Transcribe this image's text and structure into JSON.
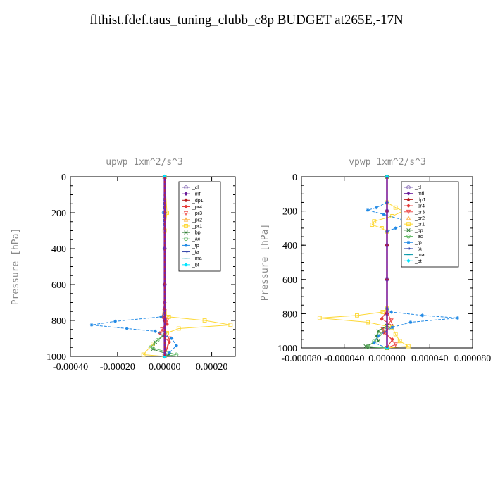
{
  "title": "flthist.fdef.taus_tuning_clubb_c8p  BUDGET at265E,-17N",
  "chart_data": [
    {
      "type": "line",
      "title": "upwp   1xm^2/s^3",
      "ylabel": "Pressure [hPa]",
      "xlim": [
        -0.0004,
        0.0003
      ],
      "ylim": [
        1000,
        0
      ],
      "x_ticks": [
        -0.0004,
        -0.0002,
        0.0,
        0.0002
      ],
      "x_tick_labels": [
        "-0.00040",
        "-0.00020",
        "0.00000",
        "0.00020"
      ],
      "y_ticks": [
        0,
        200,
        400,
        600,
        800,
        1000
      ],
      "y_tick_labels": [
        "0",
        "200",
        "400",
        "600",
        "800",
        "1000"
      ],
      "legend_position": "top-right",
      "series": [
        {
          "name": "_cl",
          "color": "#8a6fb8",
          "marker": "circle",
          "points": [
            [
              0,
              0
            ],
            [
              0,
              200
            ],
            [
              0,
              400
            ],
            [
              0,
              600
            ],
            [
              0,
              800
            ],
            [
              0,
              1000
            ]
          ]
        },
        {
          "name": "_mfl",
          "color": "#6a1b9a",
          "marker": "diamond",
          "points": [
            [
              0,
              0
            ],
            [
              0,
              200
            ],
            [
              0,
              400
            ],
            [
              0,
              600
            ],
            [
              0,
              800
            ],
            [
              0,
              1000
            ]
          ]
        },
        {
          "name": "_dp1",
          "color": "#b71c1c",
          "marker": "diamond",
          "points": [
            [
              0,
              0
            ],
            [
              0,
              200
            ],
            [
              0,
              400
            ],
            [
              0,
              600
            ],
            [
              0,
              800
            ],
            [
              0,
              1000
            ]
          ]
        },
        {
          "name": "_pr4",
          "color": "#e53935",
          "marker": "diamond",
          "points": [
            [
              0,
              0
            ],
            [
              0,
              700
            ],
            [
              -1e-05,
              780
            ],
            [
              1e-05,
              820
            ],
            [
              -2e-05,
              870
            ],
            [
              2e-05,
              920
            ],
            [
              0,
              1000
            ]
          ]
        },
        {
          "name": "_pr3",
          "color": "#ef5350",
          "marker": "triangle-down",
          "points": [
            [
              0,
              0
            ],
            [
              0,
              750
            ],
            [
              1e-05,
              800
            ],
            [
              -1e-05,
              850
            ],
            [
              2e-05,
              900
            ],
            [
              0,
              1000
            ]
          ]
        },
        {
          "name": "_pr2",
          "color": "#ffb74d",
          "marker": "triangle-up",
          "points": [
            [
              0,
              0
            ],
            [
              0,
              1000
            ]
          ]
        },
        {
          "name": "_pr1",
          "color": "#fdd835",
          "marker": "square",
          "points": [
            [
              0,
              0
            ],
            [
              1e-05,
              200
            ],
            [
              0,
              300
            ],
            [
              0,
              760
            ],
            [
              1.8e-05,
              780
            ],
            [
              0.00017,
              800
            ],
            [
              0.00028,
              825
            ],
            [
              6e-05,
              845
            ],
            [
              1e-05,
              870
            ],
            [
              -5e-05,
              930
            ],
            [
              -9e-05,
              990
            ],
            [
              0,
              1000
            ]
          ]
        },
        {
          "name": "_bp",
          "color": "#2e7d32",
          "marker": "cross",
          "points": [
            [
              0,
              0
            ],
            [
              0,
              880
            ],
            [
              -4e-05,
              920
            ],
            [
              -5e-05,
              960
            ],
            [
              2e-05,
              990
            ],
            [
              0,
              1000
            ]
          ]
        },
        {
          "name": "_ac",
          "color": "#66bb6a",
          "marker": "circle",
          "points": [
            [
              0,
              0
            ],
            [
              0,
              870
            ],
            [
              -3e-05,
              910
            ],
            [
              -6e-05,
              950
            ],
            [
              5e-05,
              990
            ],
            [
              0,
              1000
            ]
          ]
        },
        {
          "name": "_tp",
          "color": "#1e88e5",
          "marker": "star",
          "points": [
            [
              0,
              0
            ],
            [
              -5e-06,
              200
            ],
            [
              0,
              400
            ],
            [
              0,
              760
            ],
            [
              -1.6e-05,
              780
            ],
            [
              -0.00021,
              805
            ],
            [
              -0.00031,
              825
            ],
            [
              -0.00016,
              845
            ],
            [
              -4e-05,
              860
            ],
            [
              3e-05,
              900
            ],
            [
              5e-05,
              940
            ],
            [
              2e-05,
              980
            ],
            [
              0,
              1000
            ]
          ]
        },
        {
          "name": "_ta",
          "color": "#3949ab",
          "marker": "arrow",
          "points": [
            [
              0,
              0
            ],
            [
              0,
              1000
            ]
          ]
        },
        {
          "name": "_ma",
          "color": "#0097a7",
          "marker": "dash",
          "points": [
            [
              0,
              0
            ],
            [
              0,
              1000
            ]
          ]
        },
        {
          "name": "_bt",
          "color": "#00e5ff",
          "marker": "diamond",
          "points": [
            [
              0,
              0
            ],
            [
              0,
              1000
            ]
          ]
        }
      ]
    },
    {
      "type": "line",
      "title": "vpwp   1xm^2/s^3",
      "ylabel": "Pressure [hPa]",
      "xlim": [
        -8e-05,
        8e-05
      ],
      "ylim": [
        1000,
        0
      ],
      "x_ticks": [
        -8e-05,
        -4e-05,
        0.0,
        4e-05,
        8e-05
      ],
      "x_tick_labels": [
        "-0.000080",
        "-0.000040",
        "0.000000",
        "0.000040",
        "0.000080"
      ],
      "y_ticks": [
        0,
        200,
        400,
        600,
        800,
        1000
      ],
      "y_tick_labels": [
        "0",
        "200",
        "400",
        "600",
        "800",
        "1000"
      ],
      "legend_position": "top-right",
      "series": [
        {
          "name": "_cl",
          "color": "#8a6fb8",
          "marker": "circle",
          "points": [
            [
              0,
              0
            ],
            [
              0,
              200
            ],
            [
              0,
              400
            ],
            [
              0,
              600
            ],
            [
              0,
              800
            ],
            [
              0,
              1000
            ]
          ]
        },
        {
          "name": "_mfl",
          "color": "#6a1b9a",
          "marker": "diamond",
          "points": [
            [
              0,
              0
            ],
            [
              0,
              200
            ],
            [
              0,
              400
            ],
            [
              0,
              600
            ],
            [
              0,
              800
            ],
            [
              0,
              1000
            ]
          ]
        },
        {
          "name": "_dp1",
          "color": "#b71c1c",
          "marker": "diamond",
          "points": [
            [
              0,
              0
            ],
            [
              0,
              200
            ],
            [
              0,
              400
            ],
            [
              0,
              600
            ],
            [
              0,
              800
            ],
            [
              0,
              1000
            ]
          ]
        },
        {
          "name": "_pr4",
          "color": "#e53935",
          "marker": "diamond",
          "points": [
            [
              0,
              0
            ],
            [
              0,
              780
            ],
            [
              -5e-06,
              830
            ],
            [
              5e-06,
              870
            ],
            [
              -3e-06,
              910
            ],
            [
              5e-06,
              950
            ],
            [
              0,
              1000
            ]
          ]
        },
        {
          "name": "_pr3",
          "color": "#ef5350",
          "marker": "triangle-down",
          "points": [
            [
              0,
              0
            ],
            [
              0,
              790
            ],
            [
              4e-06,
              840
            ],
            [
              -4e-06,
              890
            ],
            [
              8e-06,
              980
            ],
            [
              0,
              1000
            ]
          ]
        },
        {
          "name": "_pr2",
          "color": "#ffb74d",
          "marker": "triangle-up",
          "points": [
            [
              0,
              0
            ],
            [
              0,
              1000
            ]
          ]
        },
        {
          "name": "_pr1",
          "color": "#fdd835",
          "marker": "square",
          "points": [
            [
              0,
              0
            ],
            [
              0,
              150
            ],
            [
              8e-06,
              180
            ],
            [
              1.5e-05,
              200
            ],
            [
              5e-06,
              230
            ],
            [
              -1.2e-05,
              260
            ],
            [
              -1.4e-05,
              280
            ],
            [
              -5e-06,
              300
            ],
            [
              0,
              320
            ],
            [
              0,
              770
            ],
            [
              -4e-06,
              790
            ],
            [
              -2.8e-05,
              810
            ],
            [
              -6.3e-05,
              825
            ],
            [
              -1.8e-05,
              850
            ],
            [
              5e-06,
              880
            ],
            [
              8e-06,
              920
            ],
            [
              1.2e-05,
              960
            ],
            [
              2e-05,
              990
            ],
            [
              0,
              1000
            ]
          ]
        },
        {
          "name": "_bp",
          "color": "#2e7d32",
          "marker": "cross",
          "points": [
            [
              0,
              0
            ],
            [
              0,
              870
            ],
            [
              -8e-06,
              900
            ],
            [
              -1e-05,
              930
            ],
            [
              -8e-06,
              960
            ],
            [
              -2e-05,
              990
            ],
            [
              0,
              1000
            ]
          ]
        },
        {
          "name": "_ac",
          "color": "#66bb6a",
          "marker": "circle",
          "points": [
            [
              0,
              0
            ],
            [
              0,
              880
            ],
            [
              -7e-06,
              920
            ],
            [
              -1.2e-05,
              960
            ],
            [
              -1.8e-05,
              995
            ],
            [
              0,
              1000
            ]
          ]
        },
        {
          "name": "_tp",
          "color": "#1e88e5",
          "marker": "star",
          "points": [
            [
              0,
              0
            ],
            [
              0,
              150
            ],
            [
              -1e-05,
              180
            ],
            [
              -1.8e-05,
              195
            ],
            [
              -3e-06,
              220
            ],
            [
              1.4e-05,
              250
            ],
            [
              1.8e-05,
              275
            ],
            [
              8e-06,
              300
            ],
            [
              0,
              320
            ],
            [
              0,
              770
            ],
            [
              4e-06,
              790
            ],
            [
              3.3e-05,
              810
            ],
            [
              6.6e-05,
              825
            ],
            [
              2.2e-05,
              850
            ],
            [
              5e-06,
              880
            ],
            [
              -8e-06,
              930
            ],
            [
              -1.2e-05,
              970
            ],
            [
              0,
              1000
            ]
          ]
        },
        {
          "name": "_ta",
          "color": "#3949ab",
          "marker": "arrow",
          "points": [
            [
              0,
              0
            ],
            [
              0,
              1000
            ]
          ]
        },
        {
          "name": "_ma",
          "color": "#0097a7",
          "marker": "dash",
          "points": [
            [
              0,
              0
            ],
            [
              0,
              1000
            ]
          ]
        },
        {
          "name": "_bt",
          "color": "#00e5ff",
          "marker": "diamond",
          "points": [
            [
              0,
              0
            ],
            [
              0,
              1000
            ]
          ]
        }
      ]
    }
  ]
}
